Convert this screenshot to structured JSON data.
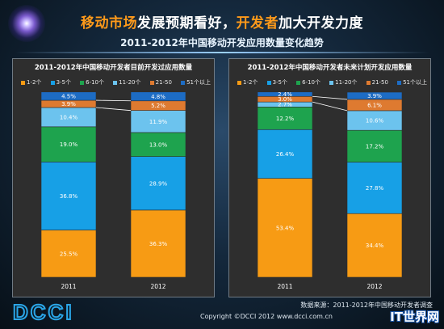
{
  "header": {
    "headline_part1": "移动市场",
    "headline_part2": "发展预期看好，",
    "headline_part3": "开发者",
    "headline_part4": "加大开发力度",
    "subtitle": "2011-2012年中国移动开发应用数量变化趋势"
  },
  "legend": [
    "1-2个",
    "3-5个",
    "6-10个",
    "11-20个",
    "21-50",
    "51个以上"
  ],
  "colors": {
    "1-2": "#f79b14",
    "3-5": "#17a0e6",
    "6-10": "#1ea34e",
    "11-20": "#6cc3ee",
    "21-50": "#de7a30",
    "51plus": "#1d6cc4"
  },
  "chart_data": [
    {
      "type": "bar",
      "stacked": true,
      "normalized_percent": true,
      "title": "2011-2012年中国移动开发者目前开发过应用数量",
      "categories": [
        "2011",
        "2012"
      ],
      "series": [
        {
          "name": "1-2个",
          "values": [
            25.5,
            36.3
          ]
        },
        {
          "name": "3-5个",
          "values": [
            36.8,
            28.9
          ]
        },
        {
          "name": "6-10个",
          "values": [
            19.0,
            13.0
          ]
        },
        {
          "name": "11-20个",
          "values": [
            10.4,
            11.9
          ]
        },
        {
          "name": "21-50",
          "values": [
            3.9,
            5.2
          ]
        },
        {
          "name": "51个以上",
          "values": [
            4.5,
            4.8
          ]
        }
      ],
      "ylim": [
        0,
        100
      ],
      "legend_position": "top"
    },
    {
      "type": "bar",
      "stacked": true,
      "normalized_percent": true,
      "title": "2011-2012年中国移动开发者未来计划开发应用数量",
      "categories": [
        "2011",
        "2012"
      ],
      "series": [
        {
          "name": "1-2个",
          "values": [
            53.4,
            34.4
          ]
        },
        {
          "name": "3-5个",
          "values": [
            26.4,
            27.8
          ]
        },
        {
          "name": "6-10个",
          "values": [
            12.2,
            17.2
          ]
        },
        {
          "name": "11-20个",
          "values": [
            2.7,
            10.6
          ]
        },
        {
          "name": "21-50",
          "values": [
            3.0,
            6.1
          ]
        },
        {
          "name": "51个以上",
          "values": [
            2.4,
            3.9
          ]
        }
      ],
      "ylim": [
        0,
        100
      ],
      "legend_position": "top"
    }
  ],
  "footer": {
    "source": "数据来源：2011-2012年中国移动开发者调查",
    "copyright": "Copyright ©DCCI 2012 www.dcci.com.cn",
    "logo_text": "DCCI",
    "watermark": "IT世界网"
  }
}
